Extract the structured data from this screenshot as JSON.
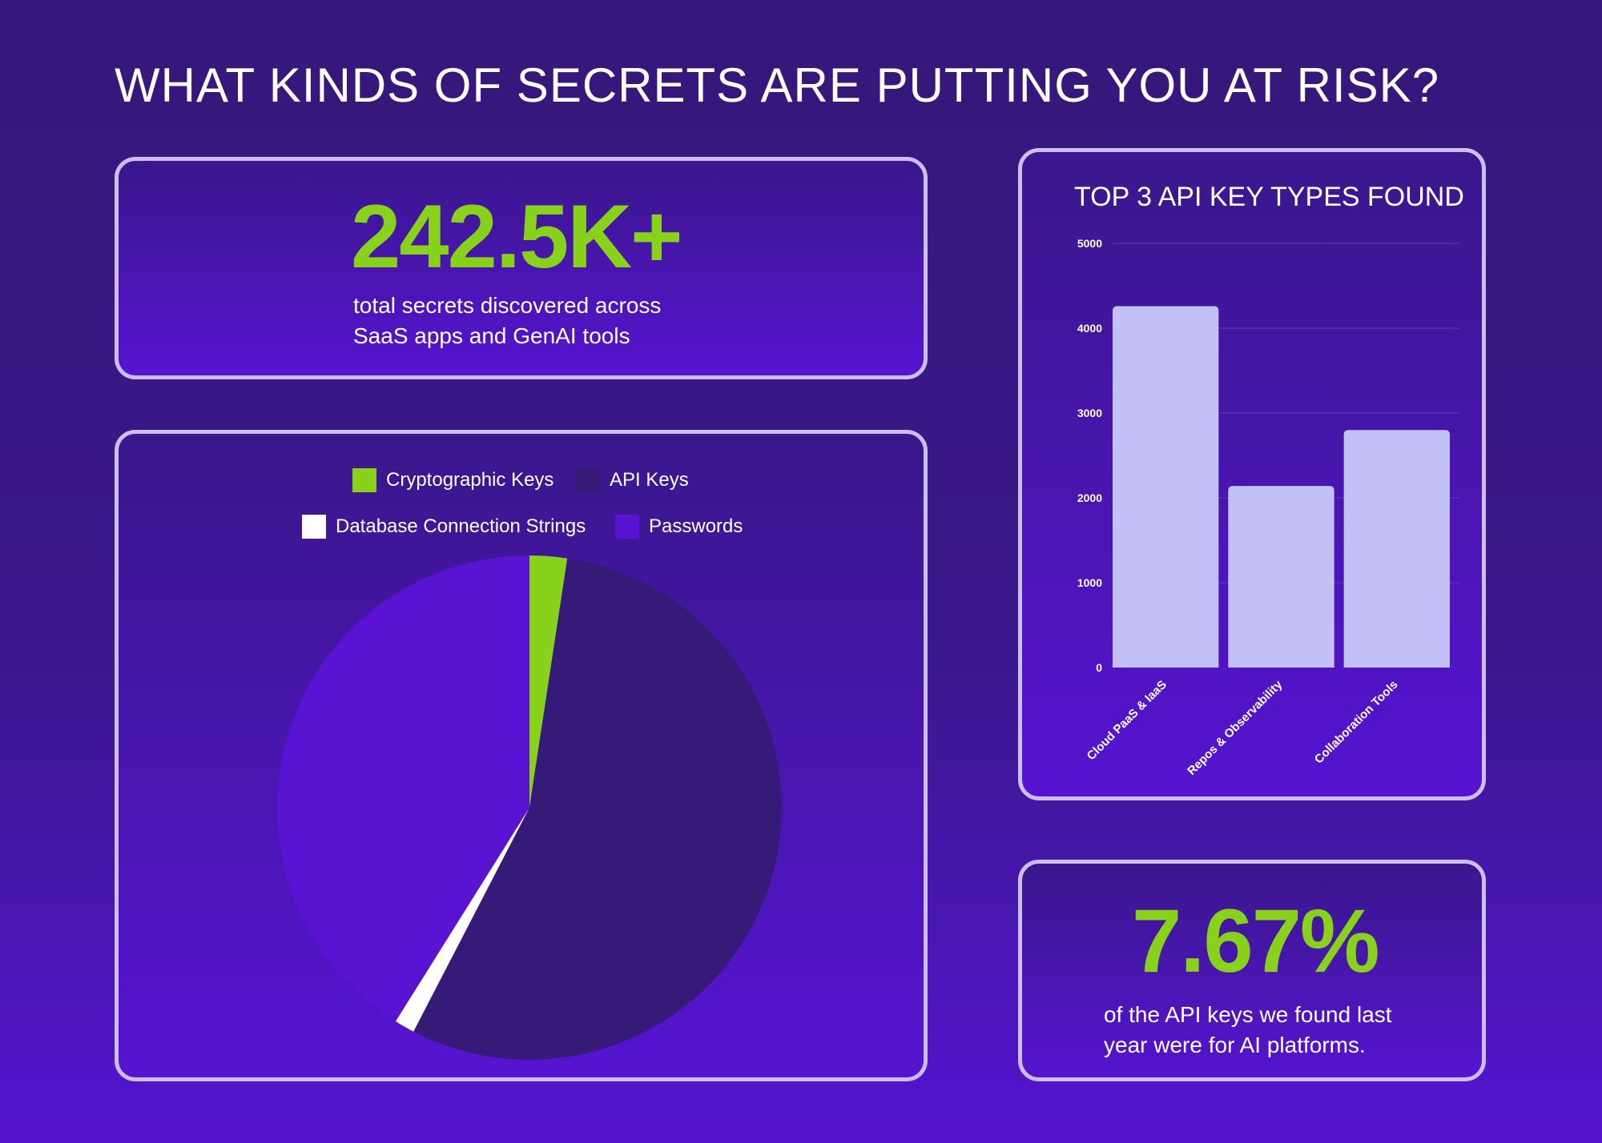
{
  "page": {
    "title": "WHAT KINDS OF SECRETS ARE PUTTING YOU AT RISK?"
  },
  "stat_total": {
    "value": "242.5K+",
    "caption_line1": "total secrets discovered across",
    "caption_line2": "SaaS apps and GenAI tools"
  },
  "stat_ai": {
    "value": "7.67%",
    "caption_line1": "of the API keys we found last",
    "caption_line2": "year were for AI platforms."
  },
  "colors": {
    "accent_green": "#88d21b",
    "card_border": "#cbbef5",
    "bar_fill": "#c3c0f7",
    "api_keys": "#351a78",
    "passwords": "#5a13d3",
    "database": "#ffffff"
  },
  "chart_data": [
    {
      "type": "pie",
      "title": "",
      "legend_position": "top",
      "legend": [
        {
          "label": "Cryptographic Keys",
          "color": "#88d21b"
        },
        {
          "label": "API Keys",
          "color": "#351a78"
        },
        {
          "label": "Database Connection Strings",
          "color": "#ffffff"
        },
        {
          "label": "Passwords",
          "color": "#5a13d3"
        }
      ],
      "slices": [
        {
          "label": "Cryptographic Keys",
          "value": 2.4,
          "color": "#88d21b"
        },
        {
          "label": "API Keys",
          "value": 55.2,
          "color": "#351a78"
        },
        {
          "label": "Database Connection Strings",
          "value": 1.3,
          "color": "#ffffff"
        },
        {
          "label": "Passwords",
          "value": 41.1,
          "color": "#5a13d3"
        }
      ]
    },
    {
      "type": "bar",
      "title": "TOP 3 API KEY TYPES FOUND",
      "categories": [
        "Cloud PaaS & IaaS",
        "Repos & Observability",
        "Collaboration Tools"
      ],
      "values": [
        4260,
        2140,
        2800
      ],
      "ylim": [
        0,
        5000
      ],
      "yticks": [
        "0",
        "1000",
        "2000",
        "3000",
        "4000",
        "5000"
      ],
      "xlabel": "",
      "ylabel": "",
      "grid": true,
      "bar_color": "#c3c0f7"
    }
  ]
}
